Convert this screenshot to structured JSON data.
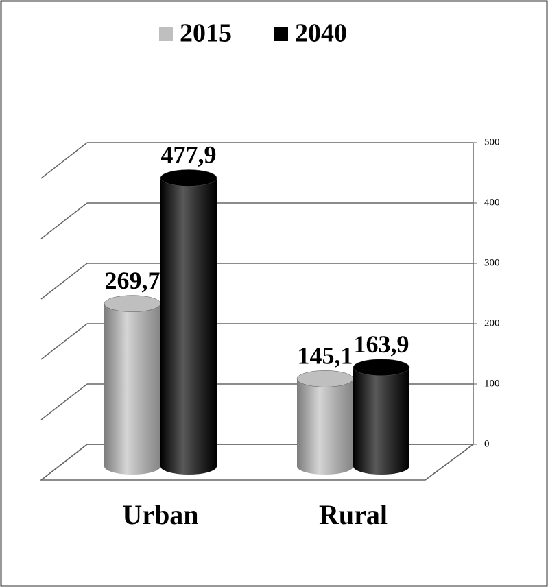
{
  "chart_data": {
    "type": "bar",
    "categories": [
      "Urban",
      "Rural"
    ],
    "series": [
      {
        "name": "2015",
        "color": "#bfbfbf",
        "values": [
          269.7,
          145.1
        ],
        "value_labels": [
          "269,7",
          "145,1"
        ]
      },
      {
        "name": "2040",
        "color": "#000000",
        "values": [
          477.9,
          163.9
        ],
        "value_labels": [
          "477,9",
          "163,9"
        ]
      }
    ],
    "ylim": [
      0,
      500
    ],
    "yticks": [
      0,
      100,
      200,
      300,
      400,
      500
    ],
    "grid": true,
    "legend": "top"
  }
}
